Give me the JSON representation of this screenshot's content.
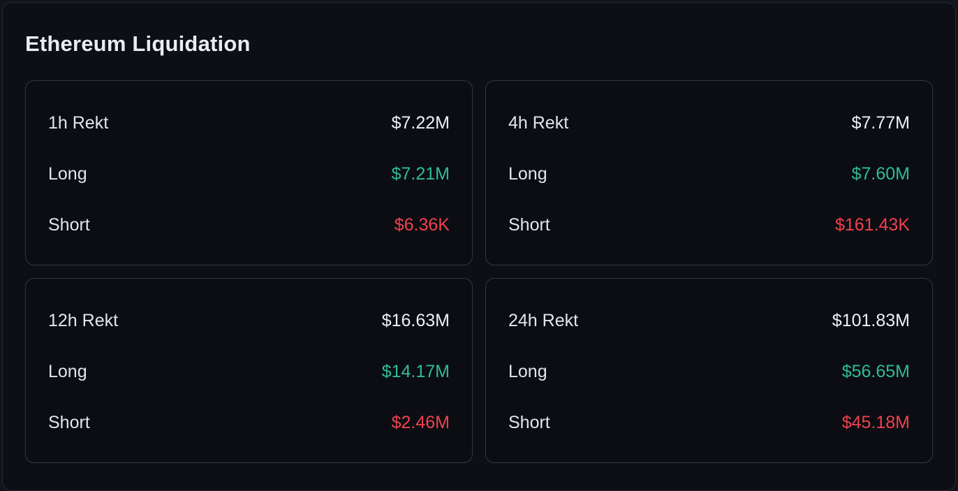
{
  "header": {
    "title": "Ethereum Liquidation"
  },
  "colors": {
    "rekt_value": "#eef1f6",
    "long_value": "#2fbd96",
    "short_value": "#f0414e",
    "panel_background": "#0d0f15",
    "card_background": "#0b0d12",
    "card_border": "#333742"
  },
  "cards": [
    {
      "period": "1h",
      "rekt_label": "1h Rekt",
      "rekt_value": "$7.22M",
      "long_label": "Long",
      "long_value": "$7.21M",
      "short_label": "Short",
      "short_value": "$6.36K"
    },
    {
      "period": "4h",
      "rekt_label": "4h Rekt",
      "rekt_value": "$7.77M",
      "long_label": "Long",
      "long_value": "$7.60M",
      "short_label": "Short",
      "short_value": "$161.43K"
    },
    {
      "period": "12h",
      "rekt_label": "12h Rekt",
      "rekt_value": "$16.63M",
      "long_label": "Long",
      "long_value": "$14.17M",
      "short_label": "Short",
      "short_value": "$2.46M"
    },
    {
      "period": "24h",
      "rekt_label": "24h Rekt",
      "rekt_value": "$101.83M",
      "long_label": "Long",
      "long_value": "$56.65M",
      "short_label": "Short",
      "short_value": "$45.18M"
    }
  ]
}
